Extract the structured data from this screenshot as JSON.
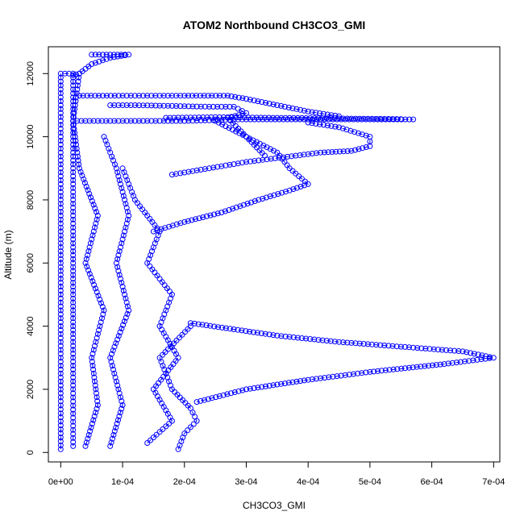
{
  "chart_data": {
    "type": "scatter",
    "title": "ATOM2 Northbound CH3CO3_GMI",
    "xlabel": "CH3CO3_GMI",
    "ylabel": "Altitude (m)",
    "xlim": [
      -2e-05,
      0.00071
    ],
    "ylim": [
      -300,
      12850
    ],
    "xticks": [
      "0e+00",
      "1e-04",
      "2e-04",
      "3e-04",
      "4e-04",
      "5e-04",
      "6e-04",
      "7e-04"
    ],
    "yticks": [
      "0",
      "2000",
      "4000",
      "6000",
      "8000",
      "10000",
      "12000"
    ],
    "grid": false,
    "legend": "none",
    "marker": "open-circle",
    "line_style": "dashed",
    "series_color": "#0000ff",
    "series": [
      {
        "points": [
          [
            0.0,
            100
          ],
          [
            0.0,
            2000
          ],
          [
            0.0,
            4000
          ],
          [
            0.0,
            6000
          ],
          [
            0.0,
            8000
          ],
          [
            0.0,
            10000
          ],
          [
            0.0,
            12000
          ],
          [
            2e-05,
            12000
          ],
          [
            2e-05,
            10000
          ],
          [
            2e-05,
            8000
          ],
          [
            2e-05,
            6000
          ],
          [
            2e-05,
            4000
          ],
          [
            2e-05,
            2000
          ],
          [
            2e-05,
            200
          ]
        ]
      },
      {
        "points": [
          [
            4e-05,
            200
          ],
          [
            6e-05,
            1500
          ],
          [
            5e-05,
            3000
          ],
          [
            7e-05,
            4500
          ],
          [
            4e-05,
            6000
          ],
          [
            6e-05,
            7500
          ],
          [
            3e-05,
            9000
          ],
          [
            2e-05,
            10500
          ],
          [
            3e-05,
            12000
          ]
        ]
      },
      {
        "points": [
          [
            8e-05,
            200
          ],
          [
            0.0001,
            1500
          ],
          [
            8e-05,
            3000
          ],
          [
            0.00011,
            4500
          ],
          [
            9e-05,
            6000
          ],
          [
            0.00011,
            7500
          ],
          [
            9e-05,
            9000
          ],
          [
            7e-05,
            10000
          ]
        ]
      },
      {
        "points": [
          [
            0.00014,
            300
          ],
          [
            0.00018,
            1000
          ],
          [
            0.00015,
            2000
          ],
          [
            0.00019,
            3000
          ],
          [
            0.00016,
            4000
          ],
          [
            0.00018,
            5000
          ],
          [
            0.00014,
            6000
          ],
          [
            0.00016,
            7000
          ],
          [
            0.00012,
            8000
          ],
          [
            0.0001,
            9000
          ]
        ]
      },
      {
        "points": [
          [
            0.00019,
            100
          ],
          [
            0.0002,
            600
          ],
          [
            0.00022,
            1000
          ],
          [
            0.00021,
            1400
          ],
          [
            0.00018,
            2000
          ],
          [
            0.00016,
            3000
          ],
          [
            0.00021,
            4000
          ]
        ]
      },
      {
        "points": [
          [
            0.00021,
            4100
          ],
          [
            0.00028,
            3900
          ],
          [
            0.00035,
            3700
          ],
          [
            0.00045,
            3500
          ],
          [
            0.00055,
            3350
          ],
          [
            0.00065,
            3200
          ],
          [
            0.0007,
            3000
          ],
          [
            0.00062,
            2800
          ],
          [
            0.0005,
            2550
          ],
          [
            0.0004,
            2300
          ],
          [
            0.0003,
            2000
          ],
          [
            0.00022,
            1600
          ]
        ]
      },
      {
        "points": [
          [
            0.00015,
            7000
          ],
          [
            0.0002,
            7300
          ],
          [
            0.00026,
            7600
          ],
          [
            0.00032,
            8000
          ],
          [
            0.00037,
            8300
          ],
          [
            0.0004,
            8500
          ],
          [
            0.00037,
            9000
          ],
          [
            0.00035,
            9500
          ],
          [
            0.0003,
            10000
          ],
          [
            0.00025,
            10500
          ]
        ]
      },
      {
        "points": [
          [
            0.00018,
            8800
          ],
          [
            0.00024,
            9000
          ],
          [
            0.0003,
            9200
          ],
          [
            0.00036,
            9350
          ],
          [
            0.00042,
            9500
          ],
          [
            0.00047,
            9550
          ],
          [
            0.0005,
            9700
          ],
          [
            0.0005,
            10000
          ],
          [
            0.00045,
            10300
          ],
          [
            0.0004,
            10450
          ]
        ]
      },
      {
        "points": [
          [
            2e-05,
            10500
          ],
          [
            0.0001,
            10500
          ],
          [
            0.0002,
            10500
          ],
          [
            0.0003,
            10550
          ],
          [
            0.0004,
            10550
          ],
          [
            0.0005,
            10550
          ],
          [
            0.00057,
            10550
          ]
        ]
      },
      {
        "points": [
          [
            0.00017,
            10600
          ],
          [
            0.00025,
            10620
          ],
          [
            0.00035,
            10600
          ],
          [
            0.00045,
            10580
          ],
          [
            0.00055,
            10560
          ]
        ]
      },
      {
        "points": [
          [
            3e-05,
            11300
          ],
          [
            0.0001,
            11300
          ],
          [
            0.0002,
            11300
          ],
          [
            0.00027,
            11300
          ],
          [
            0.0003,
            11200
          ],
          [
            0.00035,
            11000
          ],
          [
            0.0004,
            10800
          ],
          [
            0.00045,
            10650
          ]
        ]
      },
      {
        "points": [
          [
            8e-05,
            11000
          ],
          [
            0.00012,
            11000
          ],
          [
            0.00024,
            10950
          ],
          [
            0.00028,
            10950
          ],
          [
            0.0003,
            10750
          ],
          [
            0.00027,
            10600
          ],
          [
            0.0003,
            10000
          ],
          [
            0.00033,
            9400
          ]
        ]
      },
      {
        "points": [
          [
            2e-05,
            11950
          ],
          [
            3e-05,
            12000
          ],
          [
            5e-05,
            12300
          ],
          [
            8e-05,
            12500
          ],
          [
            0.00011,
            12600
          ],
          [
            8e-05,
            12600
          ],
          [
            5e-05,
            12600
          ]
        ]
      }
    ]
  }
}
